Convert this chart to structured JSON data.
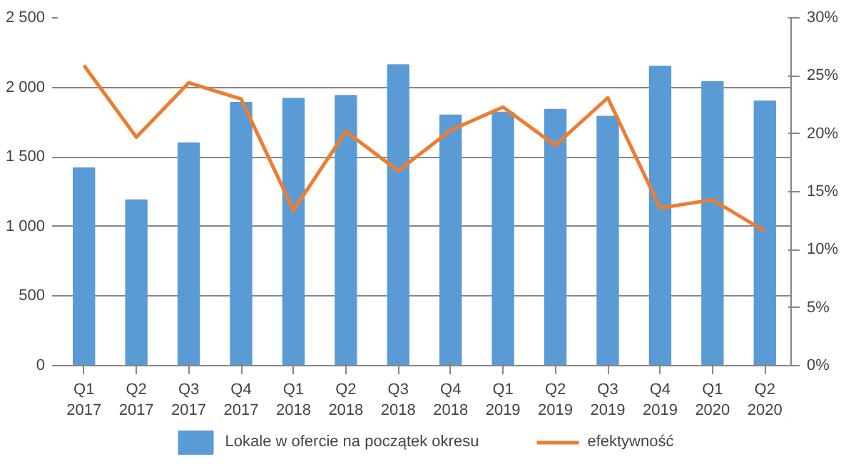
{
  "chart_data": {
    "type": "bar",
    "categories": [
      "Q1\n2017",
      "Q2\n2017",
      "Q3\n2017",
      "Q4\n2017",
      "Q1\n2018",
      "Q2\n2018",
      "Q3\n2018",
      "Q4\n2018",
      "Q1\n2019",
      "Q2\n2019",
      "Q3\n2019",
      "Q4\n2019",
      "Q1\n2020",
      "Q2\n2020"
    ],
    "series": [
      {
        "name": "Lokale w ofercie na początek okresu",
        "color": "#5b9bd5",
        "values": [
          1420,
          1190,
          1600,
          1890,
          1920,
          1940,
          2160,
          1800,
          1820,
          1840,
          1790,
          2150,
          2040,
          1900
        ]
      },
      {
        "name": "efektywność",
        "color": "#ed7d31",
        "type": "line",
        "axis": "y2",
        "values": [
          25.9,
          19.7,
          24.4,
          23.0,
          13.4,
          20.2,
          16.8,
          20.3,
          22.3,
          19.0,
          23.1,
          13.6,
          14.3,
          11.6
        ]
      }
    ],
    "ylim": [
      0,
      2500
    ],
    "yticks": [
      0,
      500,
      {
        "value": 1000,
        "label": "1 000"
      },
      {
        "value": 1500,
        "label": "1 500"
      },
      {
        "value": 2000,
        "label": "2 000"
      },
      {
        "value": 2500,
        "label": "2 500"
      }
    ],
    "y2lim": [
      0,
      30
    ],
    "y2ticks": [
      {
        "value": 0,
        "label": "0%"
      },
      {
        "value": 5,
        "label": "5%"
      },
      {
        "value": 10,
        "label": "10%"
      },
      {
        "value": 15,
        "label": "15%"
      },
      {
        "value": 20,
        "label": "20%"
      },
      {
        "value": 25,
        "label": "25%"
      },
      {
        "value": 30,
        "label": "30%"
      }
    ],
    "grid": "y",
    "legend": "bottom",
    "marker": "none",
    "line_style": "solid"
  }
}
